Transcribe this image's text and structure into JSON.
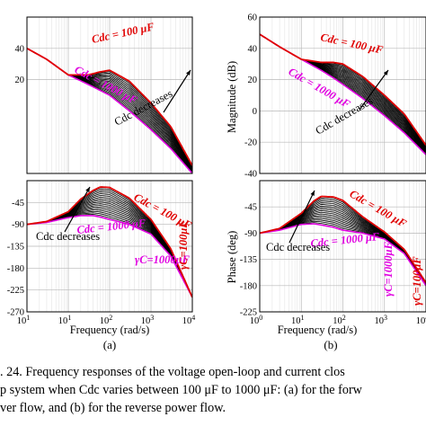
{
  "colors": {
    "cmax": "#e00000",
    "cmin": "#e000e0",
    "family": "#000000",
    "arrow": "#c00000"
  },
  "panel_a": {
    "label": "(a)",
    "xlabel": "Frequency  (rad/s)",
    "xticks": [
      "1",
      "1",
      "2",
      "3",
      "4"
    ],
    "mag_yticks": [
      "40",
      "20"
    ],
    "phase_yticks": [
      "-45",
      "-90",
      "-135",
      "-180",
      "-225",
      "-270"
    ],
    "ann_cmax": "Cdc = 100 μF",
    "ann_cmin": "Cdc = 1000 μF",
    "ann_dec": "Cdc decreases",
    "ann_gamma": "γC=1000μF",
    "ann_gamma2": "γC=100μF"
  },
  "panel_b": {
    "label": "(b)",
    "xlabel": "Frequency  (rad/s)",
    "xticks": [
      "0",
      "1",
      "2",
      "3",
      "4"
    ],
    "mag_ylabel": "Magnitude (dB)",
    "mag_yticks": [
      "60",
      "40",
      "20",
      "0",
      "-20",
      "-40"
    ],
    "phase_ylabel": "Phase (deg)",
    "phase_yticks": [
      "-45",
      "-90",
      "-135",
      "-180",
      "-225"
    ],
    "ann_cmax": "Cdc = 100 μF",
    "ann_cmin": "Cdc = 1000 μF",
    "ann_dec": "Cdc decreases",
    "ann_gamma": "γC=1000μF",
    "ann_gamma2": "γC=100μF"
  },
  "caption": {
    "line1": ". 24. Frequency responses of the voltage open-loop and current clos",
    "line2": "p system when Cdc varies between 100 μF to 1000 μF: (a) for the forw",
    "line3": "ver flow, and (b) for the reverse power flow."
  },
  "chart_data": [
    {
      "type": "line",
      "title": "",
      "xlabel": "Frequency (rad/s)",
      "ylabel": "Magnitude (dB)",
      "xscale": "log",
      "xlim": [
        1,
        10000
      ],
      "ylim": [
        -40,
        60
      ],
      "grid": true,
      "x": [
        1,
        3,
        10,
        30,
        60,
        100,
        300,
        1000,
        3000,
        10000
      ],
      "series": [
        {
          "name": "Cdc = 100 μF",
          "values": [
            40,
            33,
            23,
            23,
            25,
            26,
            19,
            5,
            -10,
            -35
          ]
        },
        {
          "name": "Cdc = 1000 μF",
          "values": [
            40,
            33,
            23,
            17,
            13,
            10,
            0,
            -12,
            -24,
            -40
          ]
        }
      ]
    },
    {
      "type": "line",
      "title": "",
      "xlabel": "Frequency (rad/s)",
      "ylabel": "Phase (deg)",
      "xscale": "log",
      "xlim": [
        1,
        10000
      ],
      "ylim": [
        -270,
        0
      ],
      "grid": true,
      "x": [
        1,
        3,
        10,
        20,
        40,
        60,
        100,
        300,
        1000,
        3000,
        10000
      ],
      "series": [
        {
          "name": "Cdc = 100 μF",
          "values": [
            -90,
            -84,
            -64,
            -38,
            -20,
            -13,
            -14,
            -36,
            -80,
            -140,
            -240
          ]
        },
        {
          "name": "Cdc = 1000 μF",
          "values": [
            -90,
            -86,
            -76,
            -72,
            -72,
            -75,
            -80,
            -90,
            -110,
            -155,
            -240
          ]
        }
      ]
    },
    {
      "type": "line",
      "title": "",
      "xlabel": "Frequency (rad/s)",
      "ylabel": "Magnitude (dB)",
      "xscale": "log",
      "xlim": [
        1,
        10000
      ],
      "ylim": [
        -40,
        60
      ],
      "grid": true,
      "x": [
        1,
        3,
        10,
        30,
        60,
        100,
        300,
        1000,
        3000,
        10000
      ],
      "series": [
        {
          "name": "Cdc = 100 μF",
          "values": [
            49,
            41,
            33,
            31,
            31,
            30,
            22,
            10,
            -2,
            -22
          ]
        },
        {
          "name": "Cdc = 1000 μF",
          "values": [
            49,
            41,
            33,
            26,
            21,
            17,
            8,
            -3,
            -14,
            -28
          ]
        }
      ]
    },
    {
      "type": "line",
      "title": "",
      "xlabel": "Frequency (rad/s)",
      "ylabel": "Phase (deg)",
      "xscale": "log",
      "xlim": [
        1,
        10000
      ],
      "ylim": [
        -225,
        0
      ],
      "grid": true,
      "x": [
        1,
        3,
        10,
        20,
        30,
        60,
        100,
        300,
        1000,
        3000,
        10000
      ],
      "series": [
        {
          "name": "Cdc = 100 μF",
          "values": [
            -90,
            -82,
            -56,
            -35,
            -27,
            -28,
            -34,
            -62,
            -88,
            -118,
            -175
          ]
        },
        {
          "name": "Cdc = 1000 μF",
          "values": [
            -90,
            -85,
            -75,
            -74,
            -76,
            -80,
            -85,
            -90,
            -100,
            -125,
            -180
          ]
        }
      ]
    }
  ]
}
